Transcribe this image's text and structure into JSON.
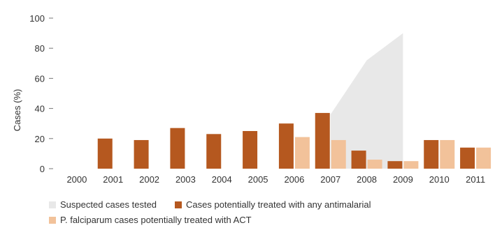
{
  "chart_data": {
    "type": "bar",
    "title": "",
    "xlabel": "",
    "ylabel": "Cases (%)",
    "ylim": [
      0,
      100
    ],
    "yticks": [
      "0",
      "20",
      "40",
      "60",
      "80",
      "100"
    ],
    "categories": [
      "2000",
      "2001",
      "2002",
      "2003",
      "2004",
      "2005",
      "2006",
      "2007",
      "2008",
      "2009",
      "2010",
      "2011"
    ],
    "grid": false,
    "legend_position": "bottom",
    "area_series": {
      "name": "Suspected cases tested",
      "color": "#e8e8e8",
      "points": [
        {
          "x": "2007",
          "y": 36
        },
        {
          "x": "2008",
          "y": 72
        },
        {
          "x": "2009",
          "y": 90
        }
      ]
    },
    "series": [
      {
        "name": "Cases potentially treated with any antimalarial",
        "color": "#b5581f",
        "values": [
          null,
          20,
          19,
          27,
          23,
          25,
          30,
          37,
          12,
          5,
          19,
          14
        ]
      },
      {
        "name": "P. falciparum cases potentially treated with ACT",
        "color": "#f2c29a",
        "values": [
          null,
          null,
          null,
          null,
          null,
          null,
          21,
          19,
          6,
          5,
          19,
          14
        ]
      }
    ]
  }
}
